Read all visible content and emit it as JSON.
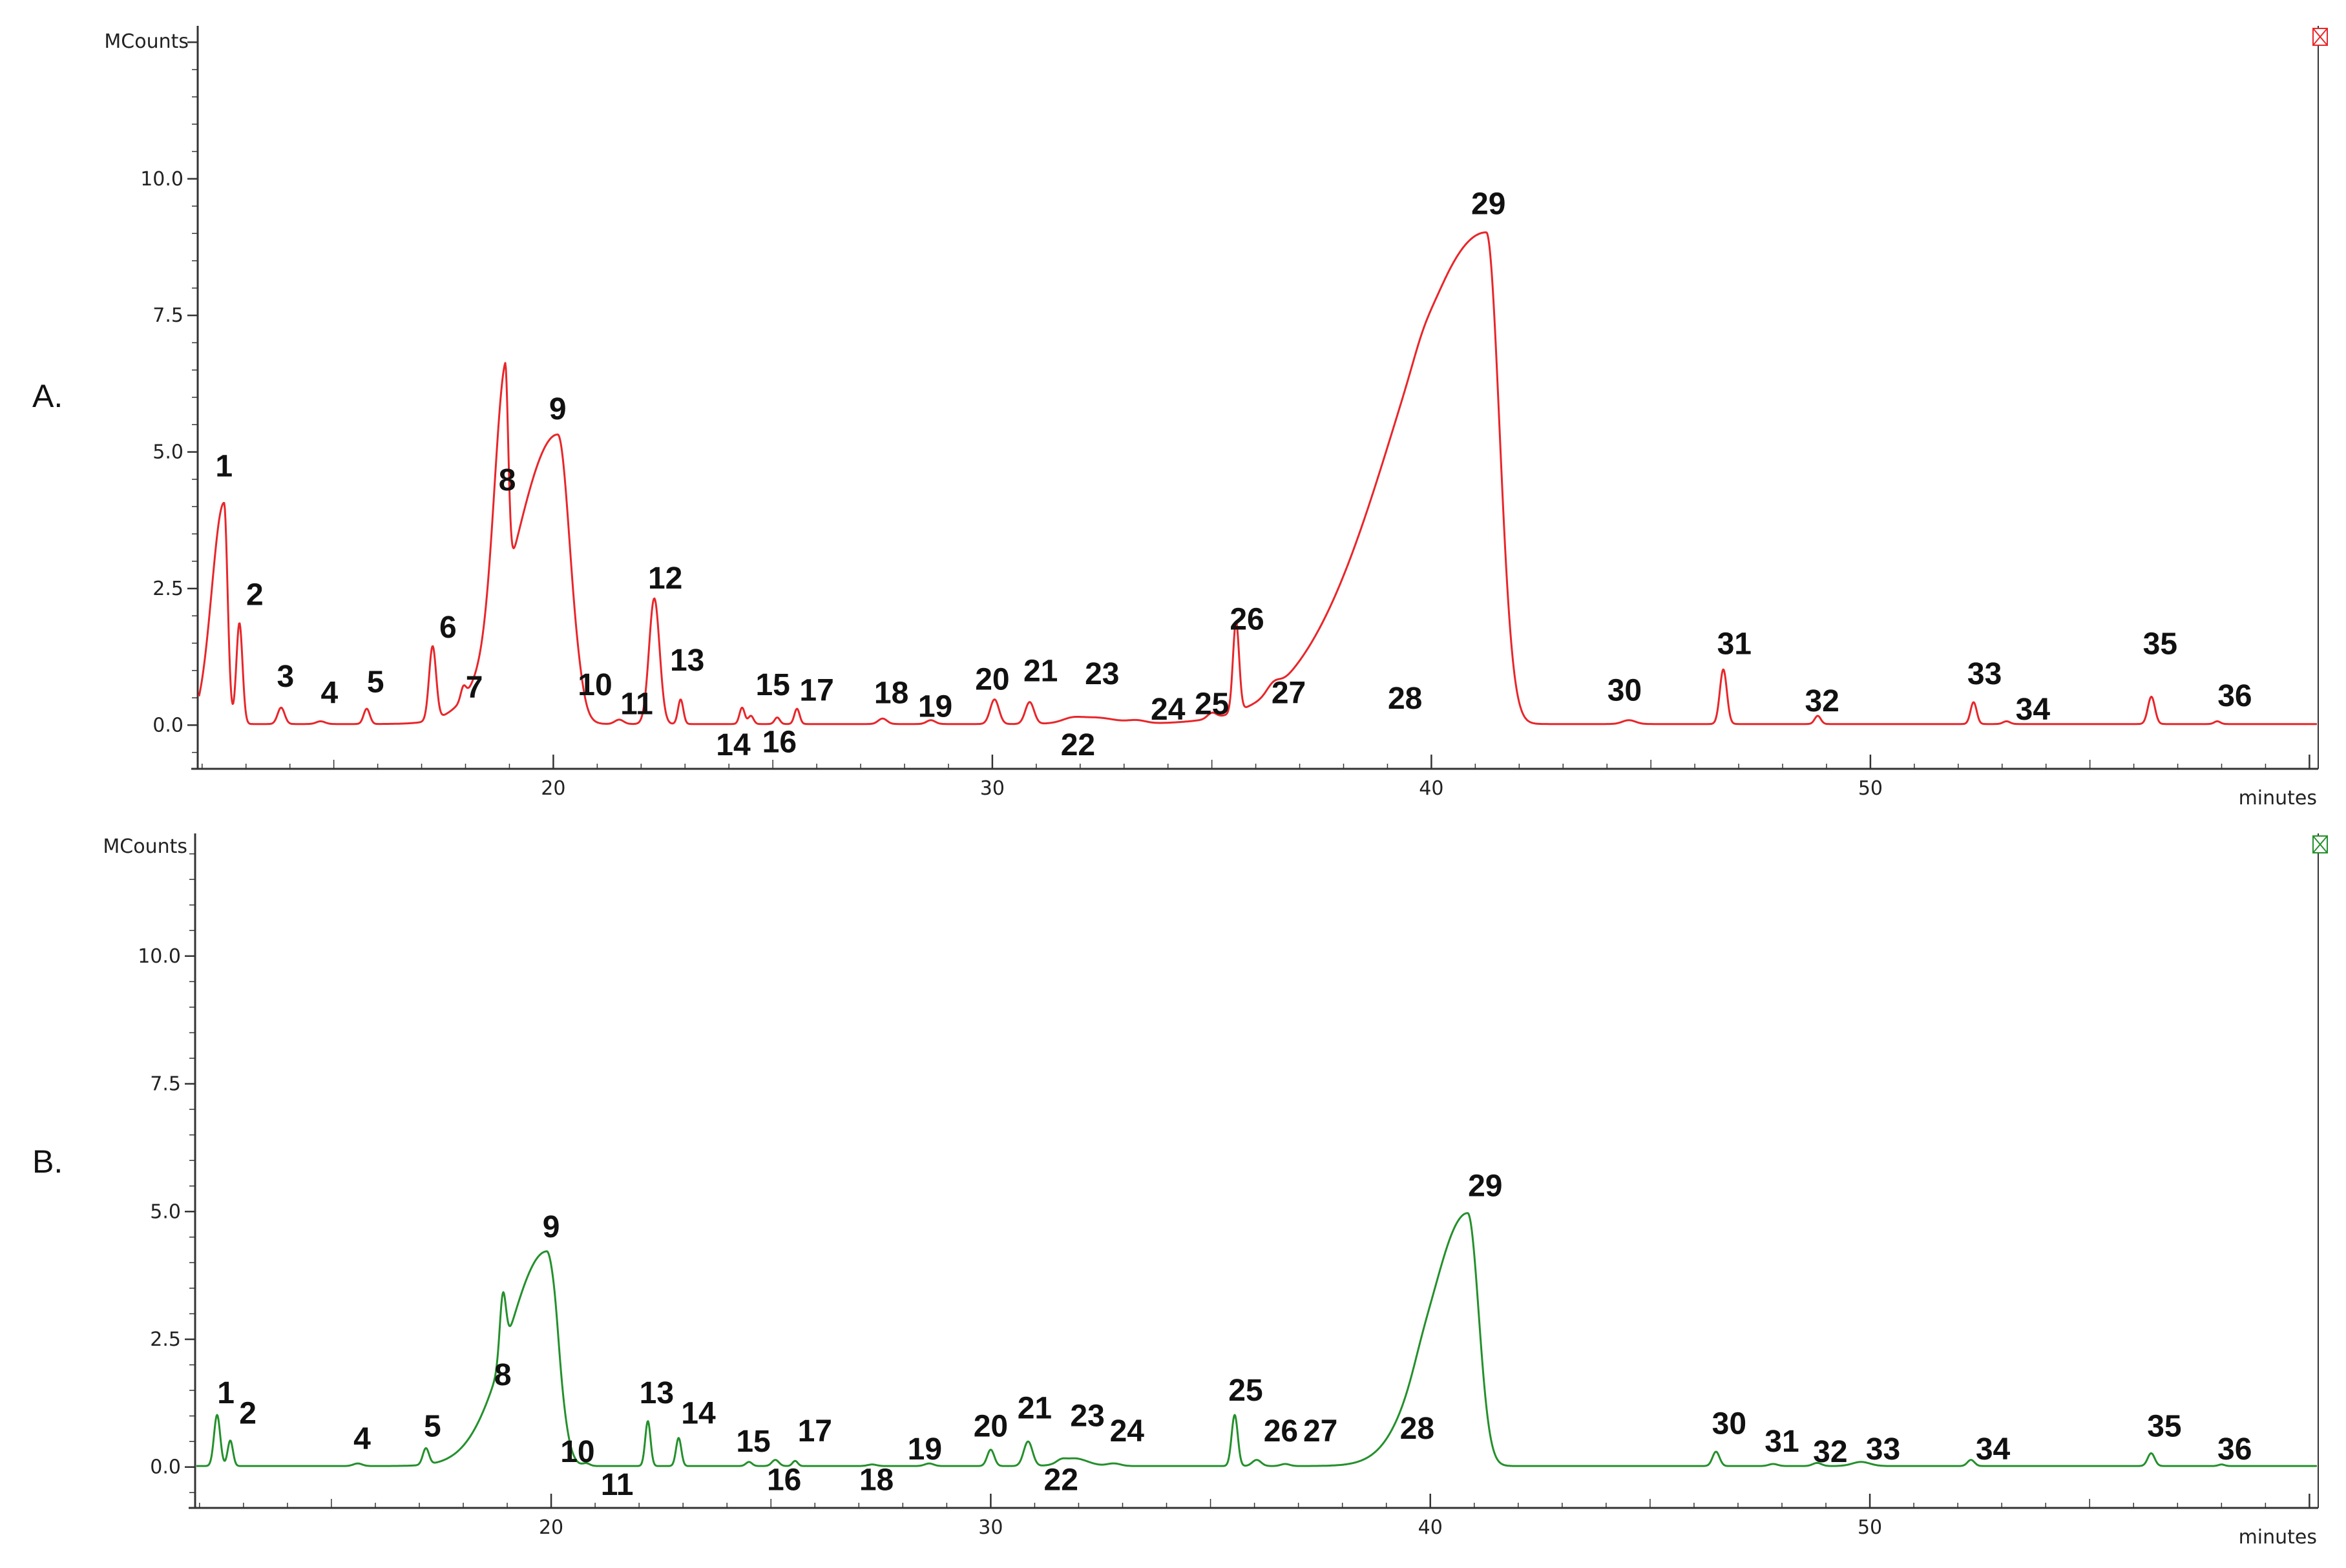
{
  "chart_data": [
    {
      "type": "line",
      "panel_label": "A.",
      "y_unit": "MCounts",
      "x_unit": "minutes",
      "xlim": [
        11.9,
        60.2
      ],
      "ylim": [
        -0.8,
        12.8
      ],
      "x_ticks": [
        "20",
        "30",
        "40",
        "50"
      ],
      "y_ticks": [
        "0.0",
        "2.5",
        "5.0",
        "7.5",
        "10.0"
      ],
      "line_color": "#e8262a",
      "corner_icon": "red-box-icon",
      "baseline": 0.02,
      "peaks": [
        {
          "label": "1",
          "rt": 12.5,
          "height": 4.05,
          "width": 0.08,
          "label_x": 12.5,
          "label_y": 4.55
        },
        {
          "label": "2",
          "rt": 12.85,
          "height": 1.85,
          "width": 0.07,
          "label_x": 13.2,
          "label_y": 2.2
        },
        {
          "label": "3",
          "rt": 13.8,
          "height": 0.3,
          "width": 0.08,
          "label_x": 13.9,
          "label_y": 0.7
        },
        {
          "label": "4",
          "rt": 14.7,
          "height": 0.05,
          "width": 0.1,
          "label_x": 14.9,
          "label_y": 0.4
        },
        {
          "label": "5",
          "rt": 15.75,
          "height": 0.28,
          "width": 0.07,
          "label_x": 15.95,
          "label_y": 0.6
        },
        {
          "label": "6",
          "rt": 17.25,
          "height": 1.35,
          "width": 0.08,
          "label_x": 17.6,
          "label_y": 1.6
        },
        {
          "label": "7",
          "rt": 17.95,
          "height": 0.22,
          "width": 0.06,
          "label_x": 18.2,
          "label_y": 0.5
        },
        {
          "label": "8",
          "rt": 18.9,
          "height": 4.1,
          "width": 0.07,
          "label_x": 18.95,
          "label_y": 4.3
        },
        {
          "label": "9",
          "rt": 20.1,
          "height": 5.3,
          "width": 0.28,
          "label_x": 20.1,
          "label_y": 5.6
        },
        {
          "label": "10",
          "rt": 20.6,
          "height": 0.08,
          "width": 0.1,
          "label_x": 20.95,
          "label_y": 0.55
        },
        {
          "label": "11",
          "rt": 21.5,
          "height": 0.08,
          "width": 0.1,
          "label_x": 21.9,
          "label_y": 0.2
        },
        {
          "label": "12",
          "rt": 22.3,
          "height": 2.3,
          "width": 0.12,
          "label_x": 22.55,
          "label_y": 2.5
        },
        {
          "label": "13",
          "rt": 22.9,
          "height": 0.45,
          "width": 0.06,
          "label_x": 23.05,
          "label_y": 1.0
        },
        {
          "label": "14",
          "rt": 24.3,
          "height": 0.3,
          "width": 0.06,
          "label_x": 24.1,
          "label_y": -0.55
        },
        {
          "label": "15",
          "rt": 24.5,
          "height": 0.15,
          "width": 0.06,
          "label_x": 25.0,
          "label_y": 0.55
        },
        {
          "label": "16",
          "rt": 25.1,
          "height": 0.12,
          "width": 0.06,
          "label_x": 25.15,
          "label_y": -0.5
        },
        {
          "label": "17",
          "rt": 25.55,
          "height": 0.28,
          "width": 0.06,
          "label_x": 26.0,
          "label_y": 0.45
        },
        {
          "label": "18",
          "rt": 27.5,
          "height": 0.1,
          "width": 0.1,
          "label_x": 27.7,
          "label_y": 0.4
        },
        {
          "label": "19",
          "rt": 28.6,
          "height": 0.07,
          "width": 0.1,
          "label_x": 28.7,
          "label_y": 0.15
        },
        {
          "label": "20",
          "rt": 30.05,
          "height": 0.45,
          "width": 0.1,
          "label_x": 30.0,
          "label_y": 0.65
        },
        {
          "label": "21",
          "rt": 30.85,
          "height": 0.4,
          "width": 0.1,
          "label_x": 31.1,
          "label_y": 0.8
        },
        {
          "label": "22",
          "rt": 31.8,
          "height": 0.05,
          "width": 0.2,
          "label_x": 31.95,
          "label_y": -0.55
        },
        {
          "label": "23",
          "rt": 32.3,
          "height": 0.12,
          "width": 0.5,
          "label_x": 32.5,
          "label_y": 0.75
        },
        {
          "label": "24",
          "rt": 33.3,
          "height": 0.05,
          "width": 0.2,
          "label_x": 34.0,
          "label_y": 0.1
        },
        {
          "label": "25",
          "rt": 35.0,
          "height": 0.1,
          "width": 0.1,
          "label_x": 35.0,
          "label_y": 0.2
        },
        {
          "label": "26",
          "rt": 35.55,
          "height": 1.65,
          "width": 0.07,
          "label_x": 35.8,
          "label_y": 1.75
        },
        {
          "label": "27",
          "rt": 36.4,
          "height": 0.15,
          "width": 0.15,
          "label_x": 36.75,
          "label_y": 0.4
        },
        {
          "label": "28",
          "rt": 39.8,
          "height": 0.1,
          "width": 0.2,
          "label_x": 39.4,
          "label_y": 0.3
        },
        {
          "label": "29",
          "rt": 41.25,
          "height": 9.0,
          "width": 0.3,
          "label_x": 41.3,
          "label_y": 9.35
        },
        {
          "label": "30",
          "rt": 44.5,
          "height": 0.07,
          "width": 0.15,
          "label_x": 44.4,
          "label_y": 0.45
        },
        {
          "label": "31",
          "rt": 46.65,
          "height": 1.0,
          "width": 0.08,
          "label_x": 46.9,
          "label_y": 1.3
        },
        {
          "label": "32",
          "rt": 48.8,
          "height": 0.15,
          "width": 0.07,
          "label_x": 48.9,
          "label_y": 0.25
        },
        {
          "label": "33",
          "rt": 52.35,
          "height": 0.4,
          "width": 0.07,
          "label_x": 52.6,
          "label_y": 0.75
        },
        {
          "label": "34",
          "rt": 53.1,
          "height": 0.05,
          "width": 0.08,
          "label_x": 53.7,
          "label_y": 0.1
        },
        {
          "label": "35",
          "rt": 56.4,
          "height": 0.5,
          "width": 0.08,
          "label_x": 56.6,
          "label_y": 1.3
        },
        {
          "label": "36",
          "rt": 57.9,
          "height": 0.05,
          "width": 0.07,
          "label_x": 58.3,
          "label_y": 0.35
        }
      ]
    },
    {
      "type": "line",
      "panel_label": "B.",
      "y_unit": "MCounts",
      "x_unit": "minutes",
      "xlim": [
        11.9,
        60.2
      ],
      "ylim": [
        -0.8,
        12.4
      ],
      "x_ticks": [
        "20",
        "30",
        "40",
        "50"
      ],
      "y_ticks": [
        "0.0",
        "2.5",
        "5.0",
        "7.5",
        "10.0"
      ],
      "line_color": "#24902c",
      "corner_icon": "green-box-icon",
      "baseline": 0.02,
      "peaks": [
        {
          "label": "1",
          "rt": 12.4,
          "height": 1.0,
          "width": 0.07,
          "label_x": 12.6,
          "label_y": 1.25
        },
        {
          "label": "2",
          "rt": 12.7,
          "height": 0.5,
          "width": 0.06,
          "label_x": 13.1,
          "label_y": 0.85
        },
        {
          "label": "4",
          "rt": 15.6,
          "height": 0.05,
          "width": 0.1,
          "label_x": 15.7,
          "label_y": 0.35
        },
        {
          "label": "5",
          "rt": 17.15,
          "height": 0.32,
          "width": 0.07,
          "label_x": 17.3,
          "label_y": 0.6
        },
        {
          "label": "8",
          "rt": 18.9,
          "height": 1.2,
          "width": 0.07,
          "label_x": 18.9,
          "label_y": 1.6
        },
        {
          "label": "9",
          "rt": 19.9,
          "height": 4.2,
          "width": 0.25,
          "label_x": 20.0,
          "label_y": 4.5
        },
        {
          "label": "10",
          "rt": 20.1,
          "height": 0.15,
          "width": 0.07,
          "label_x": 20.6,
          "label_y": 0.1
        },
        {
          "label": "11",
          "rt": 20.8,
          "height": 0.05,
          "width": 0.08,
          "label_x": 21.5,
          "label_y": -0.55
        },
        {
          "label": "13",
          "rt": 22.2,
          "height": 0.88,
          "width": 0.06,
          "label_x": 22.4,
          "label_y": 1.25
        },
        {
          "label": "14",
          "rt": 22.9,
          "height": 0.55,
          "width": 0.06,
          "label_x": 23.35,
          "label_y": 0.85
        },
        {
          "label": "15",
          "rt": 24.5,
          "height": 0.08,
          "width": 0.07,
          "label_x": 24.6,
          "label_y": 0.3
        },
        {
          "label": "16",
          "rt": 25.1,
          "height": 0.12,
          "width": 0.08,
          "label_x": 25.3,
          "label_y": -0.45
        },
        {
          "label": "17",
          "rt": 25.55,
          "height": 0.1,
          "width": 0.06,
          "label_x": 26.0,
          "label_y": 0.5
        },
        {
          "label": "18",
          "rt": 27.3,
          "height": 0.03,
          "width": 0.1,
          "label_x": 27.4,
          "label_y": -0.45
        },
        {
          "label": "19",
          "rt": 28.6,
          "height": 0.05,
          "width": 0.1,
          "label_x": 28.5,
          "label_y": 0.15
        },
        {
          "label": "20",
          "rt": 30.0,
          "height": 0.32,
          "width": 0.08,
          "label_x": 30.0,
          "label_y": 0.6
        },
        {
          "label": "21",
          "rt": 30.85,
          "height": 0.48,
          "width": 0.1,
          "label_x": 31.0,
          "label_y": 0.95
        },
        {
          "label": "22",
          "rt": 31.6,
          "height": 0.05,
          "width": 0.1,
          "label_x": 31.6,
          "label_y": -0.45
        },
        {
          "label": "23",
          "rt": 31.9,
          "height": 0.15,
          "width": 0.3,
          "label_x": 32.2,
          "label_y": 0.8
        },
        {
          "label": "24",
          "rt": 32.8,
          "height": 0.05,
          "width": 0.15,
          "label_x": 33.1,
          "label_y": 0.5
        },
        {
          "label": "25",
          "rt": 35.55,
          "height": 1.0,
          "width": 0.07,
          "label_x": 35.8,
          "label_y": 1.3
        },
        {
          "label": "26",
          "rt": 36.05,
          "height": 0.12,
          "width": 0.1,
          "label_x": 36.6,
          "label_y": 0.5
        },
        {
          "label": "27",
          "rt": 36.7,
          "height": 0.04,
          "width": 0.1,
          "label_x": 37.5,
          "label_y": 0.5
        },
        {
          "label": "28",
          "rt": 39.8,
          "height": 0.12,
          "width": 0.2,
          "label_x": 39.7,
          "label_y": 0.55
        },
        {
          "label": "29",
          "rt": 40.85,
          "height": 4.95,
          "width": 0.25,
          "label_x": 41.25,
          "label_y": 5.3
        },
        {
          "label": "30",
          "rt": 46.5,
          "height": 0.28,
          "width": 0.08,
          "label_x": 46.8,
          "label_y": 0.65
        },
        {
          "label": "31",
          "rt": 47.8,
          "height": 0.04,
          "width": 0.1,
          "label_x": 48.0,
          "label_y": 0.3
        },
        {
          "label": "32",
          "rt": 48.8,
          "height": 0.06,
          "width": 0.1,
          "label_x": 49.1,
          "label_y": 0.1
        },
        {
          "label": "33",
          "rt": 49.8,
          "height": 0.08,
          "width": 0.2,
          "label_x": 50.3,
          "label_y": 0.15
        },
        {
          "label": "34",
          "rt": 52.3,
          "height": 0.12,
          "width": 0.08,
          "label_x": 52.8,
          "label_y": 0.15
        },
        {
          "label": "35",
          "rt": 56.4,
          "height": 0.25,
          "width": 0.08,
          "label_x": 56.7,
          "label_y": 0.6
        },
        {
          "label": "36",
          "rt": 58.0,
          "height": 0.03,
          "width": 0.07,
          "label_x": 58.3,
          "label_y": 0.15
        }
      ]
    }
  ]
}
